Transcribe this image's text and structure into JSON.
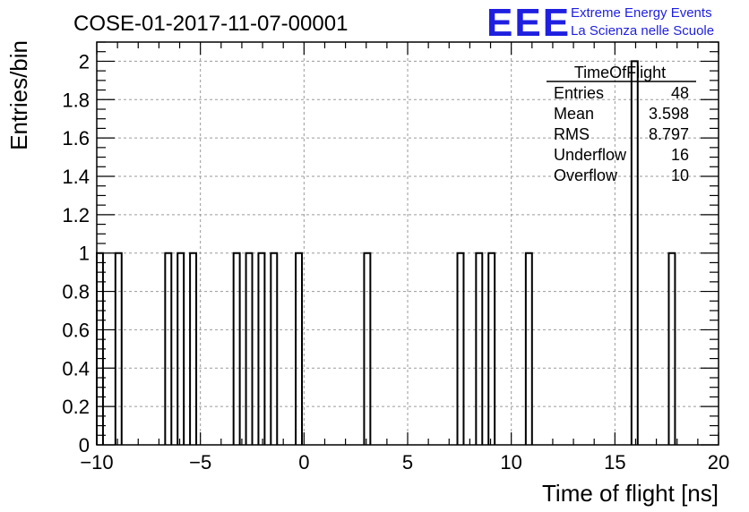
{
  "chart_data": {
    "type": "histogram",
    "title": "COSE-01-2017-11-07-00001",
    "xlabel": "Time of flight [ns]",
    "ylabel": "Entries/bin",
    "xlim": [
      -10,
      20
    ],
    "ylim": [
      0,
      2.1
    ],
    "bin_width": 0.3,
    "grid": true,
    "x_tick_labels": [
      "−10",
      "−5",
      "0",
      "5",
      "10",
      "15",
      "20"
    ],
    "x_ticks": [
      -10,
      -5,
      0,
      5,
      10,
      15,
      20
    ],
    "y_tick_labels": [
      "0",
      "0.2",
      "0.4",
      "0.6",
      "0.8",
      "1",
      "1.2",
      "1.4",
      "1.6",
      "1.8",
      "2"
    ],
    "y_ticks": [
      0,
      0.2,
      0.4,
      0.6,
      0.8,
      1,
      1.2,
      1.4,
      1.6,
      1.8,
      2
    ],
    "bins": [
      {
        "x": -10.0,
        "value": 1
      },
      {
        "x": -9.1,
        "value": 1
      },
      {
        "x": -6.7,
        "value": 1
      },
      {
        "x": -6.1,
        "value": 1
      },
      {
        "x": -5.5,
        "value": 1
      },
      {
        "x": -3.4,
        "value": 1
      },
      {
        "x": -2.8,
        "value": 1
      },
      {
        "x": -2.2,
        "value": 1
      },
      {
        "x": -1.6,
        "value": 1
      },
      {
        "x": -0.4,
        "value": 1
      },
      {
        "x": 2.9,
        "value": 1
      },
      {
        "x": 7.4,
        "value": 1
      },
      {
        "x": 8.3,
        "value": 1
      },
      {
        "x": 8.9,
        "value": 1
      },
      {
        "x": 10.7,
        "value": 1
      },
      {
        "x": 15.8,
        "value": 2
      },
      {
        "x": 17.6,
        "value": 1
      }
    ],
    "stats_box": {
      "title": "TimeOfFlight",
      "rows": [
        {
          "label": "Entries",
          "value": "48"
        },
        {
          "label": "Mean",
          "value": "3.598"
        },
        {
          "label": "RMS",
          "value": "8.797"
        },
        {
          "label": "Underflow",
          "value": "16"
        },
        {
          "label": "Overflow",
          "value": "10"
        }
      ]
    }
  },
  "logo": {
    "mark": "EEE",
    "line1": "Extreme Energy Events",
    "line2": "La Scienza nelle Scuole"
  },
  "colors": {
    "logo": "#1f1fe0",
    "grid": "#9a9a9a",
    "histogram": "#000000"
  }
}
